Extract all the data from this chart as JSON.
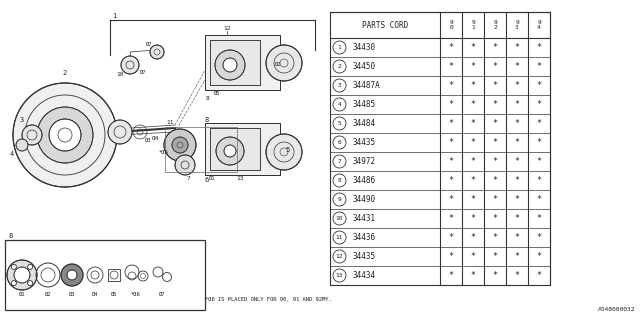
{
  "bg_color": "#e8e8e8",
  "drawing_bg": "#ffffff",
  "table_bg": "#ffffff",
  "line_color": "#333333",
  "text_color": "#222222",
  "parts": [
    {
      "num": 1,
      "code": "34430"
    },
    {
      "num": 2,
      "code": "34450"
    },
    {
      "num": 3,
      "code": "34487A"
    },
    {
      "num": 4,
      "code": "34485"
    },
    {
      "num": 5,
      "code": "34484"
    },
    {
      "num": 6,
      "code": "34435"
    },
    {
      "num": 7,
      "code": "34972"
    },
    {
      "num": 8,
      "code": "34486"
    },
    {
      "num": 9,
      "code": "34490"
    },
    {
      "num": 10,
      "code": "34431"
    },
    {
      "num": 11,
      "code": "34436"
    },
    {
      "num": 12,
      "code": "34435"
    },
    {
      "num": 13,
      "code": "34434"
    }
  ],
  "year_labels": [
    "9\n0",
    "9\n1",
    "9\n2",
    "9\n3",
    "9\n4"
  ],
  "footnote": "*α6 IS PLACED ONLY FOR 90, 91 AND 92MY.",
  "catalog_num": "A348000032"
}
